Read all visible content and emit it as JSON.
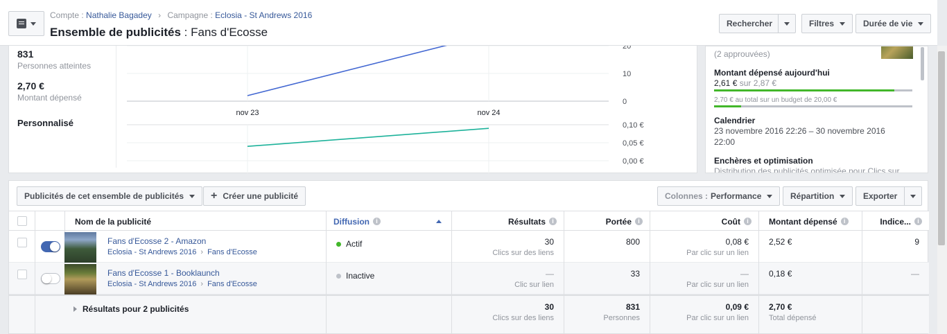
{
  "header": {
    "breadcrumb": {
      "account_prefix": "Compte :",
      "account_name": "Nathalie Bagadey",
      "campaign_prefix": "Campagne :",
      "campaign_name": "Eclosia - St Andrews 2016"
    },
    "title_type": "Ensemble de publicités",
    "title_sep": " : ",
    "title_name": "Fans d'Ecosse",
    "buttons": {
      "search": "Rechercher",
      "filters": "Filtres",
      "duration": "Durée de vie"
    }
  },
  "stats": {
    "reach_value": "831",
    "reach_label": "Personnes atteintes",
    "spend_value": "2,70 €",
    "spend_label": "Montant dépensé",
    "custom_label": "Personnalisé"
  },
  "chart_data": [
    {
      "type": "line",
      "x": [
        "nov 23",
        "nov 24"
      ],
      "series": [
        {
          "values": [
            2,
            24
          ],
          "color": "#4267d2"
        }
      ],
      "yticks": [
        "20",
        "10",
        "0"
      ],
      "ylim": [
        0,
        25
      ]
    },
    {
      "type": "line",
      "x": [
        "nov 23",
        "nov 24"
      ],
      "series": [
        {
          "values": [
            0.04,
            0.09
          ],
          "color": "#1cb29a"
        }
      ],
      "yticks": [
        "0,10 €",
        "0,05 €",
        "0,00 €"
      ],
      "ylim": [
        0,
        0.1
      ]
    }
  ],
  "right_panel": {
    "approved": "(2 approuvées)",
    "today_title": "Montant dépensé aujourd'hui",
    "today_value": "2,61 €",
    "today_of": "sur 2,87 €",
    "today_progress": 0.91,
    "total_text": "2,70 € au total sur un budget de 20,00 €",
    "total_progress": 0.135,
    "calendar_title": "Calendrier",
    "calendar_line1": "23 novembre 2016 22:26 – 30 novembre 2016",
    "calendar_line2": "22:00",
    "bids_title": "Enchères et optimisation",
    "bids_text": "Distribution des publicités optimisée pour Clics sur"
  },
  "toolbar": {
    "ads_dropdown": "Publicités de cet ensemble de publicités",
    "create_ad": "Créer une publicité",
    "columns_prefix": "Colonnes :",
    "columns_value": "Performance",
    "breakdown": "Répartition",
    "export": "Exporter"
  },
  "table": {
    "headers": {
      "name": "Nom de la publicité",
      "delivery": "Diffusion",
      "results": "Résultats",
      "reach": "Portée",
      "cost": "Coût",
      "spend": "Montant dépensé",
      "index": "Indice..."
    },
    "rows": [
      {
        "name": "Fans d'Ecosse 2 - Amazon",
        "campaign": "Eclosia - St Andrews 2016",
        "adset": "Fans d'Ecosse",
        "status": "Actif",
        "status_color": "#42b72a",
        "toggle": "on",
        "results": "30",
        "results_sub": "Clics sur des liens",
        "reach": "800",
        "cost": "0,08 €",
        "cost_sub": "Par clic sur un lien",
        "spend": "2,52 €",
        "index": "9"
      },
      {
        "name": "Fans d'Ecosse 1 - Booklaunch",
        "campaign": "Eclosia - St Andrews 2016",
        "adset": "Fans d'Ecosse",
        "status": "Inactive",
        "status_color": "#bec2c9",
        "toggle": "off",
        "results": "—",
        "results_sub": "Clic sur lien",
        "reach": "33",
        "cost": "—",
        "cost_sub": "Par clic sur un lien",
        "spend": "0,18 €",
        "index": "—"
      }
    ],
    "totals": {
      "label": "Résultats pour 2 publicités",
      "results": "30",
      "results_sub": "Clics sur des liens",
      "reach": "831",
      "reach_sub": "Personnes",
      "cost": "0,09 €",
      "cost_sub": "Par clic sur un lien",
      "spend": "2,70 €",
      "spend_sub": "Total dépensé"
    }
  }
}
